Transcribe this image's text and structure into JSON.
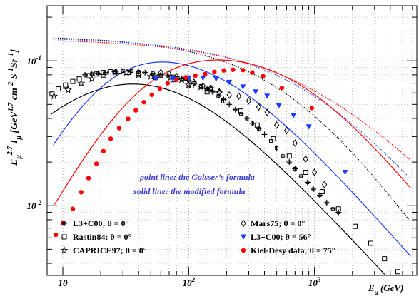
{
  "chart_data": {
    "type": "scatter",
    "title": "",
    "xlabel": "E_μ (GeV)",
    "ylabel": "E_μ^2.7 I_μ [GeV^1.7 cm^-2 S^-1 Sr^-1]",
    "x_scale": "log",
    "y_scale": "log",
    "xlim": [
      7.5,
      6500
    ],
    "ylim": [
      0.0033,
      0.24
    ],
    "grid": true,
    "legend_position": "bottom",
    "x_ticks": [
      {
        "value": 10,
        "base": "10",
        "exp": ""
      },
      {
        "value": 100,
        "base": "10",
        "exp": "2"
      },
      {
        "value": 1000,
        "base": "10",
        "exp": "3"
      }
    ],
    "y_ticks": [
      {
        "value": 0.01,
        "base": "10",
        "exp": "-2"
      },
      {
        "value": 0.1,
        "base": "10",
        "exp": "-1"
      }
    ],
    "annotations": [
      {
        "text": "point line: the Gaisser’s formula",
        "color": "#3b3bd6"
      },
      {
        "text": "solid  line: the modified formula",
        "color": "#3b3bd6"
      }
    ],
    "series": [
      {
        "name": "L3+C00; θ = 0°",
        "marker": "cross",
        "color": "#000000",
        "points": [
          [
            15,
            0.08
          ],
          [
            17,
            0.081
          ],
          [
            19,
            0.082
          ],
          [
            22,
            0.083
          ],
          [
            26,
            0.084
          ],
          [
            30,
            0.085
          ],
          [
            35,
            0.085
          ],
          [
            40,
            0.084
          ],
          [
            45,
            0.083
          ],
          [
            52,
            0.082
          ],
          [
            60,
            0.08
          ],
          [
            68,
            0.079
          ],
          [
            75,
            0.078
          ],
          [
            82,
            0.076
          ],
          [
            90,
            0.075
          ],
          [
            100,
            0.073
          ],
          [
            112,
            0.07
          ],
          [
            125,
            0.067
          ],
          [
            140,
            0.064
          ],
          [
            155,
            0.061
          ],
          [
            172,
            0.057
          ],
          [
            190,
            0.054
          ],
          [
            210,
            0.05
          ],
          [
            235,
            0.046
          ],
          [
            260,
            0.043
          ],
          [
            290,
            0.04
          ],
          [
            320,
            0.037
          ],
          [
            360,
            0.034
          ],
          [
            400,
            0.031
          ],
          [
            450,
            0.028
          ],
          [
            500,
            0.025
          ],
          [
            560,
            0.022
          ],
          [
            630,
            0.02
          ],
          [
            700,
            0.018
          ],
          [
            780,
            0.016
          ],
          [
            880,
            0.0145
          ],
          [
            980,
            0.013
          ],
          [
            1100,
            0.0118
          ],
          [
            1250,
            0.0105
          ],
          [
            1400,
            0.0095
          ],
          [
            1550,
            0.009
          ]
        ]
      },
      {
        "name": "Rastin84; θ = 0°",
        "marker": "open-square",
        "color": "#000000",
        "points": [
          [
            8.2,
            0.059
          ],
          [
            9.2,
            0.064
          ],
          [
            10.5,
            0.068
          ],
          [
            12,
            0.072
          ],
          [
            13.5,
            0.075
          ],
          [
            16.2,
            0.079
          ],
          [
            18.5,
            0.081
          ],
          [
            21,
            0.083
          ],
          [
            24,
            0.084
          ],
          [
            28,
            0.085
          ],
          [
            33,
            0.083
          ],
          [
            40,
            0.082
          ],
          [
            55,
            0.077
          ],
          [
            75,
            0.074
          ],
          [
            105,
            0.067
          ],
          [
            140,
            0.061
          ],
          [
            190,
            0.053
          ],
          [
            260,
            0.045
          ],
          [
            350,
            0.036
          ],
          [
            470,
            0.029
          ],
          [
            630,
            0.022
          ],
          [
            850,
            0.017
          ],
          [
            1150,
            0.0125
          ],
          [
            1550,
            0.0095
          ],
          [
            2100,
            0.0072
          ],
          [
            2800,
            0.0055
          ],
          [
            3600,
            0.0043
          ],
          [
            4600,
            0.0035
          ]
        ]
      },
      {
        "name": "CAPRICE97; θ = 0°",
        "marker": "open-star",
        "color": "#000000",
        "points": [
          [
            8.5,
            0.057
          ],
          [
            11,
            0.063
          ],
          [
            14,
            0.07
          ],
          [
            17,
            0.075
          ],
          [
            21,
            0.079
          ],
          [
            26,
            0.083
          ],
          [
            32,
            0.083
          ],
          [
            40,
            0.08
          ],
          [
            50,
            0.078
          ],
          [
            60,
            0.079
          ],
          [
            72,
            0.077
          ],
          [
            88,
            0.074
          ],
          [
            100,
            0.068
          ],
          [
            125,
            0.066
          ],
          [
            150,
            0.064
          ],
          [
            175,
            0.06
          ]
        ]
      },
      {
        "name": "Mars75; θ = 0°",
        "marker": "open-diamond",
        "color": "#000000",
        "points": [
          [
            60,
            0.083
          ],
          [
            70,
            0.081
          ],
          [
            80,
            0.078
          ],
          [
            95,
            0.076
          ],
          [
            110,
            0.071
          ],
          [
            130,
            0.067
          ],
          [
            150,
            0.065
          ],
          [
            175,
            0.061
          ],
          [
            210,
            0.058
          ],
          [
            250,
            0.057
          ],
          [
            300,
            0.053
          ],
          [
            360,
            0.048
          ],
          [
            420,
            0.044
          ],
          [
            500,
            0.036
          ],
          [
            600,
            0.033
          ],
          [
            700,
            0.027
          ],
          [
            850,
            0.021
          ],
          [
            1000,
            0.017
          ],
          [
            1200,
            0.014
          ]
        ]
      },
      {
        "name": "L3+C00; θ = 56°",
        "marker": "filled-triangle-down",
        "color": "#1a3cff",
        "points": [
          [
            55,
            0.075
          ],
          [
            75,
            0.075
          ],
          [
            100,
            0.076
          ],
          [
            130,
            0.076
          ],
          [
            165,
            0.075
          ],
          [
            210,
            0.071
          ],
          [
            270,
            0.066
          ],
          [
            340,
            0.061
          ],
          [
            420,
            0.057
          ],
          [
            520,
            0.049
          ],
          [
            680,
            0.042
          ],
          [
            900,
            0.035
          ],
          [
            1750,
            0.017
          ]
        ]
      },
      {
        "name": "Kiel-Desy data; θ = 75°",
        "marker": "filled-circle",
        "color": "#ff0000",
        "points": [
          [
            8.8,
            0.0063
          ],
          [
            10,
            0.0076
          ],
          [
            12,
            0.0095
          ],
          [
            14,
            0.0124
          ],
          [
            16,
            0.0155
          ],
          [
            18.5,
            0.0195
          ],
          [
            21,
            0.0238
          ],
          [
            24,
            0.029
          ],
          [
            28,
            0.0343
          ],
          [
            33,
            0.0398
          ],
          [
            38,
            0.0455
          ],
          [
            44,
            0.0518
          ],
          [
            51,
            0.0583
          ],
          [
            59,
            0.0642
          ],
          [
            68,
            0.07
          ],
          [
            80,
            0.074
          ],
          [
            95,
            0.0768
          ],
          [
            113,
            0.079
          ],
          [
            135,
            0.081
          ],
          [
            160,
            0.0838
          ],
          [
            190,
            0.0858
          ],
          [
            225,
            0.0868
          ],
          [
            270,
            0.0862
          ],
          [
            320,
            0.083
          ],
          [
            390,
            0.0782
          ],
          [
            550,
            0.065
          ],
          [
            950,
            0.0472
          ]
        ]
      }
    ],
    "curves": [
      {
        "style": "dotted",
        "color": "#000000",
        "y_start": 0.15
      },
      {
        "style": "dotted",
        "color": "#1a3cff",
        "y_start": 0.147
      },
      {
        "style": "dotted",
        "color": "#ff0000",
        "y_start": 0.143
      },
      {
        "style": "solid",
        "color": "#000000"
      },
      {
        "style": "solid",
        "color": "#1a3cff"
      },
      {
        "style": "solid",
        "color": "#ff0000"
      }
    ]
  }
}
